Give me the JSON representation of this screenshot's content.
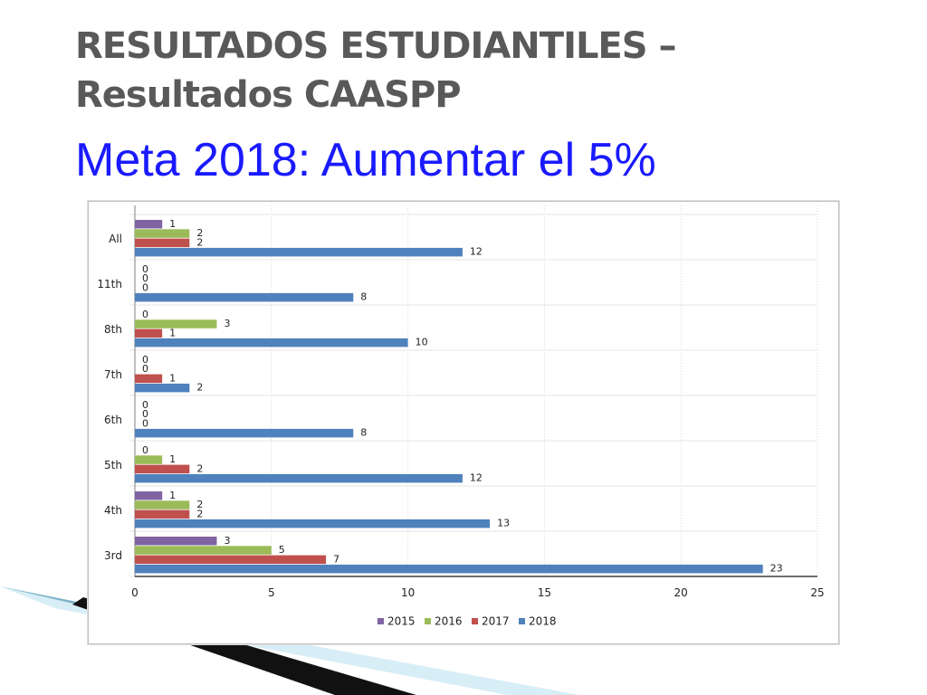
{
  "slide": {
    "title_line1": "RESULTADOS ESTUDIANTILES –",
    "title_line2": "Resultados CAASPP",
    "subtitle": "Meta 2018: Aumentar el 5%"
  },
  "chart_data": {
    "type": "bar",
    "orientation": "horizontal",
    "categories": [
      "All",
      "11th",
      "8th",
      "7th",
      "6th",
      "5th",
      "4th",
      "3rd"
    ],
    "series": [
      {
        "name": "2015",
        "color": "#8064a2",
        "values": [
          1,
          0,
          0,
          0,
          0,
          0,
          1,
          3
        ]
      },
      {
        "name": "2016",
        "color": "#9bbb59",
        "values": [
          2,
          0,
          3,
          0,
          0,
          1,
          2,
          5
        ]
      },
      {
        "name": "2017",
        "color": "#c0504d",
        "values": [
          2,
          0,
          1,
          1,
          0,
          2,
          2,
          7
        ]
      },
      {
        "name": "2018",
        "color": "#4f81bd",
        "values": [
          12,
          8,
          10,
          2,
          8,
          12,
          13,
          23
        ]
      }
    ],
    "x_ticks": [
      0,
      5,
      10,
      15,
      20,
      25
    ],
    "xlim": [
      0,
      25
    ],
    "data_labels": true,
    "grid": true,
    "legend": "bottom"
  }
}
